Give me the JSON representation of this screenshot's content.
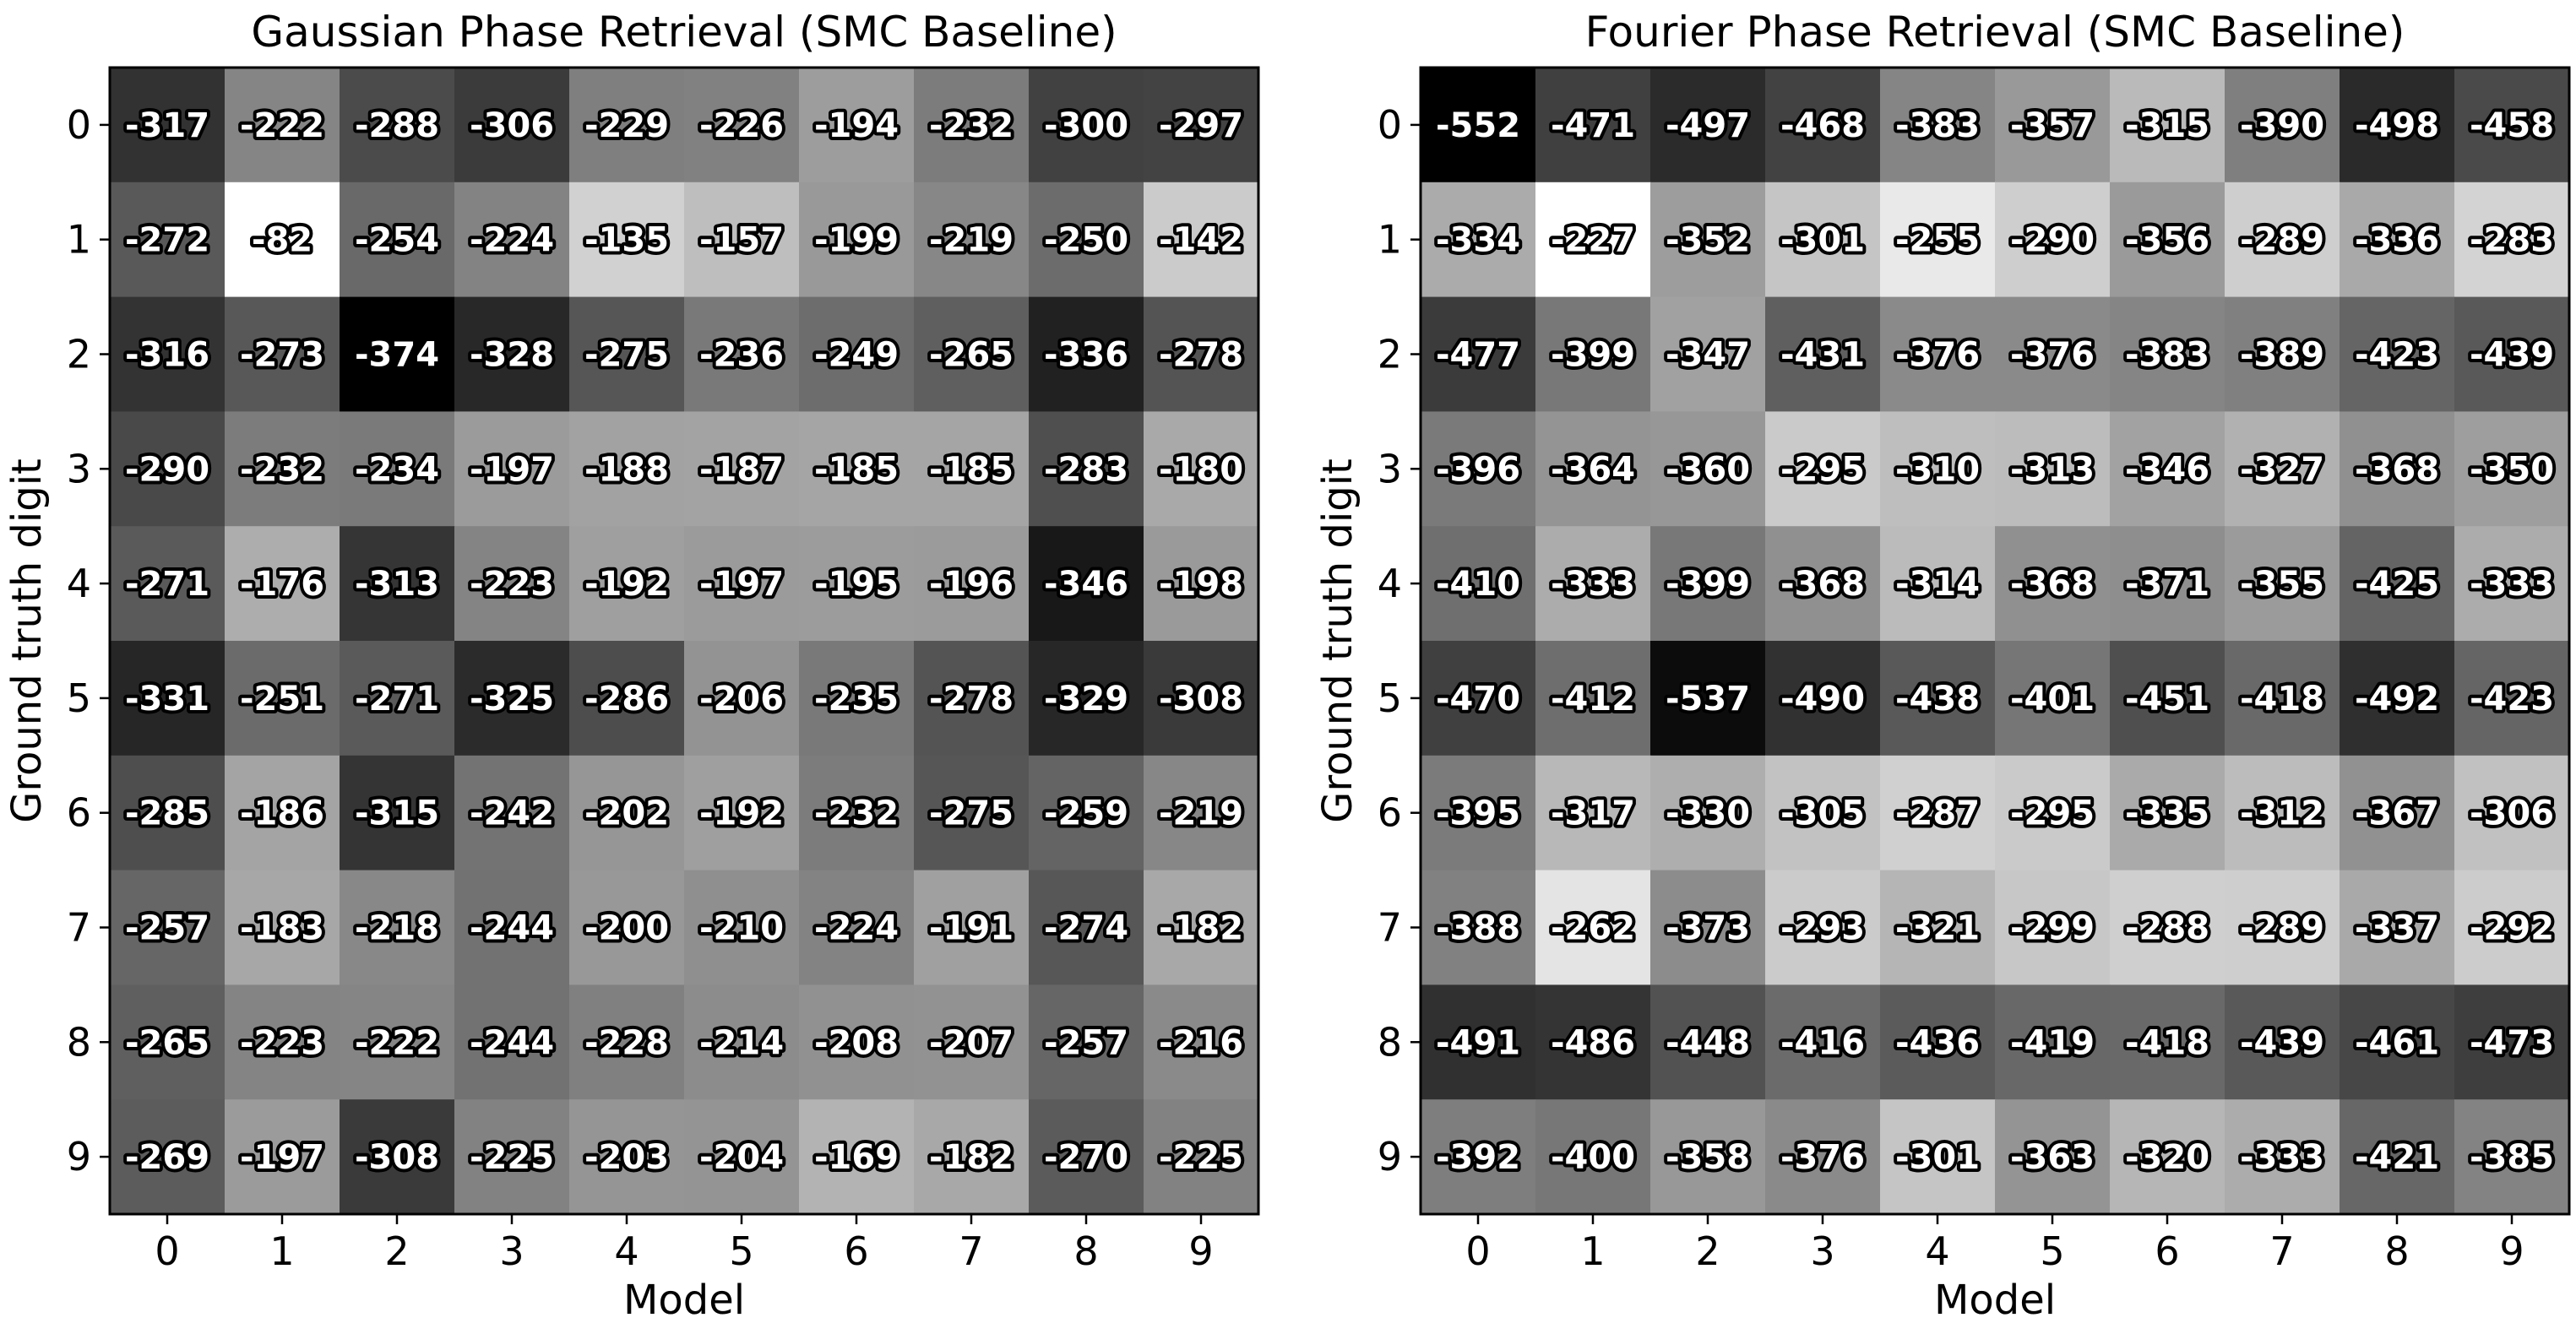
{
  "chart_data": [
    {
      "type": "heatmap",
      "title": "Gaussian Phase Retrieval (SMC Baseline)",
      "xlabel": "Model",
      "ylabel": "Ground truth digit",
      "x_ticks": [
        "0",
        "1",
        "2",
        "3",
        "4",
        "5",
        "6",
        "7",
        "8",
        "9"
      ],
      "y_ticks": [
        "0",
        "1",
        "2",
        "3",
        "4",
        "5",
        "6",
        "7",
        "8",
        "9"
      ],
      "colormap": "grayscale: more negative = darker",
      "values": [
        [
          -317,
          -222,
          -288,
          -306,
          -229,
          -226,
          -194,
          -232,
          -300,
          -297
        ],
        [
          -272,
          -82,
          -254,
          -224,
          -135,
          -157,
          -199,
          -219,
          -250,
          -142
        ],
        [
          -316,
          -273,
          -374,
          -328,
          -275,
          -236,
          -249,
          -265,
          -336,
          -278
        ],
        [
          -290,
          -232,
          -234,
          -197,
          -188,
          -187,
          -185,
          -185,
          -283,
          -180
        ],
        [
          -271,
          -176,
          -313,
          -223,
          -192,
          -197,
          -195,
          -196,
          -346,
          -198
        ],
        [
          -331,
          -251,
          -271,
          -325,
          -286,
          -206,
          -235,
          -278,
          -329,
          -308
        ],
        [
          -285,
          -186,
          -315,
          -242,
          -202,
          -192,
          -232,
          -275,
          -259,
          -219
        ],
        [
          -257,
          -183,
          -218,
          -244,
          -200,
          -210,
          -224,
          -191,
          -274,
          -182
        ],
        [
          -265,
          -223,
          -222,
          -244,
          -228,
          -214,
          -208,
          -207,
          -257,
          -216
        ],
        [
          -269,
          -197,
          -308,
          -225,
          -203,
          -204,
          -169,
          -182,
          -270,
          -225
        ]
      ]
    },
    {
      "type": "heatmap",
      "title": "Fourier Phase Retrieval (SMC Baseline)",
      "xlabel": "Model",
      "ylabel": "Ground truth digit",
      "x_ticks": [
        "0",
        "1",
        "2",
        "3",
        "4",
        "5",
        "6",
        "7",
        "8",
        "9"
      ],
      "y_ticks": [
        "0",
        "1",
        "2",
        "3",
        "4",
        "5",
        "6",
        "7",
        "8",
        "9"
      ],
      "colormap": "grayscale: more negative = darker",
      "values": [
        [
          -552,
          -471,
          -497,
          -468,
          -383,
          -357,
          -315,
          -390,
          -498,
          -458
        ],
        [
          -334,
          -227,
          -352,
          -301,
          -255,
          -290,
          -356,
          -289,
          -336,
          -283
        ],
        [
          -477,
          -399,
          -347,
          -431,
          -376,
          -376,
          -383,
          -389,
          -423,
          -439
        ],
        [
          -396,
          -364,
          -360,
          -295,
          -310,
          -313,
          -346,
          -327,
          -368,
          -350
        ],
        [
          -410,
          -333,
          -399,
          -368,
          -314,
          -368,
          -371,
          -355,
          -425,
          -333
        ],
        [
          -470,
          -412,
          -537,
          -490,
          -438,
          -401,
          -451,
          -418,
          -492,
          -423
        ],
        [
          -395,
          -317,
          -330,
          -305,
          -287,
          -295,
          -335,
          -312,
          -367,
          -306
        ],
        [
          -388,
          -262,
          -373,
          -293,
          -321,
          -299,
          -288,
          -289,
          -337,
          -292
        ],
        [
          -491,
          -486,
          -448,
          -416,
          -436,
          -419,
          -418,
          -439,
          -461,
          -473
        ],
        [
          -392,
          -400,
          -358,
          -376,
          -301,
          -363,
          -320,
          -333,
          -421,
          -385
        ]
      ]
    }
  ]
}
